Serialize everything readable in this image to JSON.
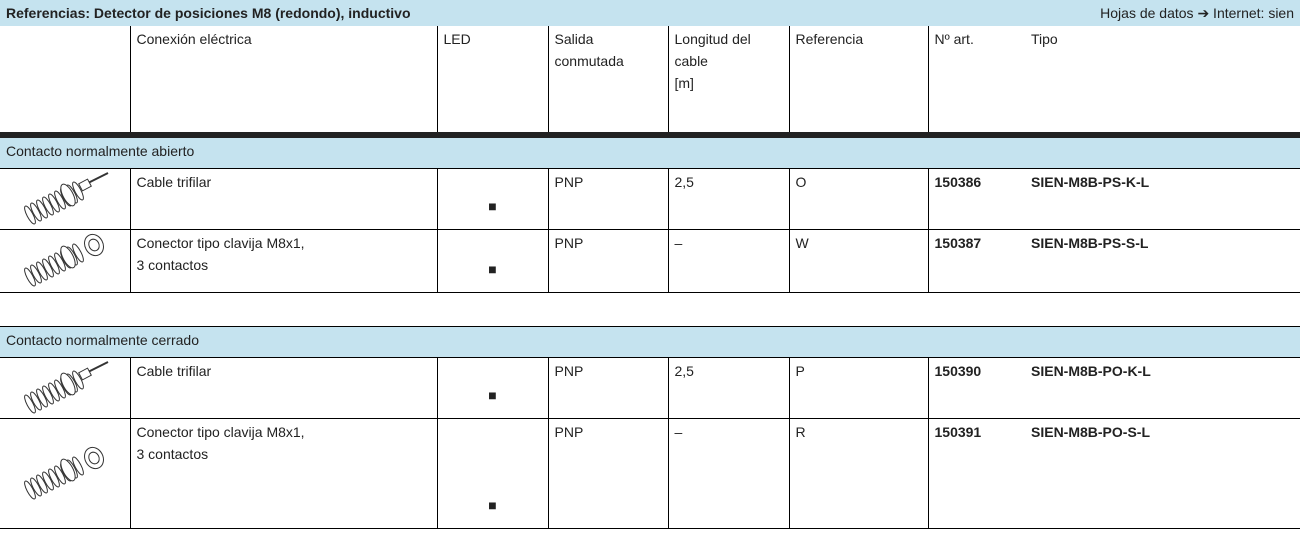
{
  "header": {
    "title": "Referencias: Detector de posiciones M8 (redondo), inductivo",
    "link": "Hojas de datos ➔ Internet: sien"
  },
  "columns": [
    [
      "Conexión eléctrica"
    ],
    [
      "LED"
    ],
    [
      "Salida",
      "conmutada"
    ],
    [
      "Longitud del",
      "cable",
      "[m]"
    ],
    [
      "Referencia"
    ],
    [
      "Nº art."
    ],
    [
      "Tipo"
    ]
  ],
  "sections": [
    {
      "title": "Contacto normalmente abierto",
      "rows": [
        {
          "connection": [
            "Cable trifilar"
          ],
          "led": "■",
          "output": "PNP",
          "length": "2,5",
          "reference": "O",
          "part_no": "150386",
          "type": "SIEN-M8B-PS-K-L"
        },
        {
          "connection": [
            "Conector tipo clavija M8x1,",
            "3 contactos"
          ],
          "led": "■",
          "output": "PNP",
          "length": "–",
          "reference": "W",
          "part_no": "150387",
          "type": "SIEN-M8B-PS-S-L"
        }
      ]
    },
    {
      "title": "Contacto normalmente cerrado",
      "rows": [
        {
          "connection": [
            "Cable trifilar"
          ],
          "led": "■",
          "output": "PNP",
          "length": "2,5",
          "reference": "P",
          "part_no": "150390",
          "type": "SIEN-M8B-PO-K-L"
        },
        {
          "connection": [
            "Conector tipo clavija M8x1,",
            "3 contactos"
          ],
          "led": "■",
          "output": "PNP",
          "length": "–",
          "reference": "R",
          "part_no": "150391",
          "type": "SIEN-M8B-PO-S-L"
        }
      ]
    }
  ]
}
